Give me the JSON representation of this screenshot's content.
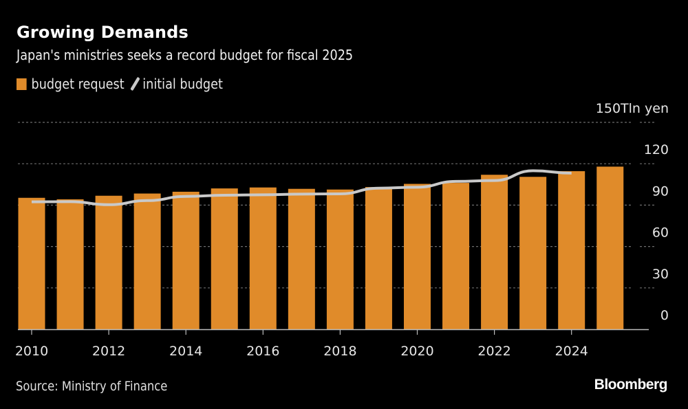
{
  "header": {
    "title": "Growing Demands",
    "subtitle": "Japan's ministries seeks a record budget for fiscal 2025"
  },
  "legend": [
    {
      "label": "budget request",
      "color": "#E08B2A",
      "kind": "bar"
    },
    {
      "label": "initial budget",
      "color": "#C9C9C9",
      "kind": "line"
    }
  ],
  "footer": {
    "source": "Source: Ministry of Finance",
    "brand": "Bloomberg"
  },
  "chart_data": {
    "type": "bar",
    "title": "Growing Demands",
    "subtitle": "Japan's ministries seeks a record budget for fiscal 2025",
    "xlabel": "",
    "ylabel": "Tln yen",
    "ylim": [
      0,
      150
    ],
    "yticks": [
      0,
      30,
      60,
      90,
      120,
      150
    ],
    "ytick_labels": [
      "0",
      "30",
      "60",
      "90",
      "120",
      "150Tln yen"
    ],
    "xtick_labels": [
      "2010",
      "2012",
      "2014",
      "2016",
      "2018",
      "2020",
      "2022",
      "2024"
    ],
    "grid": true,
    "legend_position": "top-left",
    "categories": [
      "2010",
      "2011",
      "2012",
      "2013",
      "2014",
      "2015",
      "2016",
      "2017",
      "2018",
      "2019",
      "2020",
      "2021",
      "2022",
      "2023",
      "2024",
      "2025"
    ],
    "series": [
      {
        "name": "budget request",
        "type": "bar",
        "color": "#E08B2A",
        "values": [
          95.3,
          94.2,
          96.8,
          98.4,
          99.7,
          102.1,
          102.8,
          101.8,
          101.3,
          103.1,
          105.4,
          106.1,
          112.0,
          110.5,
          114.6,
          117.9
        ]
      },
      {
        "name": "initial budget",
        "type": "line",
        "color": "#C9C9C9",
        "values": [
          92.4,
          92.5,
          90.3,
          93.3,
          96.3,
          97.2,
          97.5,
          98.0,
          98.2,
          102.3,
          103.0,
          107.2,
          107.8,
          114.9,
          113.2,
          null
        ]
      }
    ]
  }
}
